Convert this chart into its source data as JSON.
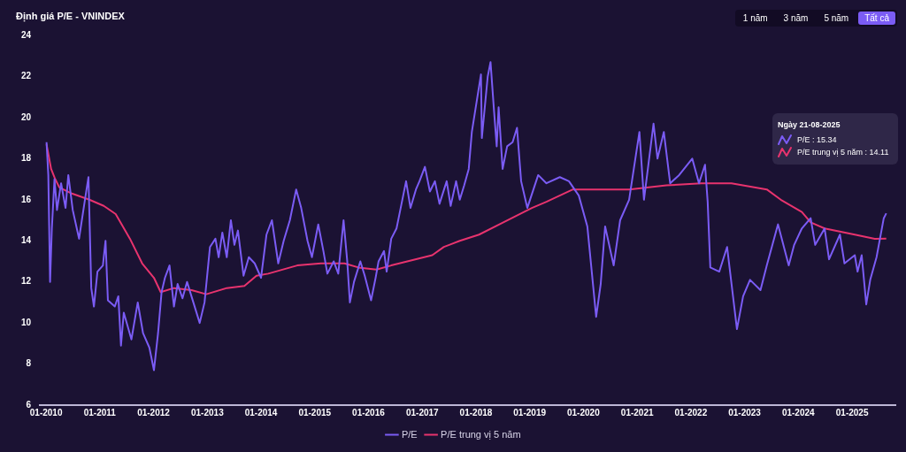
{
  "chart_data": {
    "type": "line",
    "title": "Định giá P/E - VNINDEX",
    "annotations": [
      "1 năm",
      "3 năm",
      "5 năm",
      "Tất cả",
      "Ngày 21-08-2025",
      "P/E : 15.34",
      "P/E trung vị 5 năm : 14.11"
    ],
    "xlim": [
      "2009-11-20",
      "2025-10-22"
    ],
    "xticks": [
      {
        "value": "2010-01",
        "label": "01-2010"
      },
      {
        "value": "2011-01",
        "label": "01-2011"
      },
      {
        "value": "2012-01",
        "label": "01-2012"
      },
      {
        "value": "2013-01",
        "label": "01-2013"
      },
      {
        "value": "2014-01",
        "label": "01-2014"
      },
      {
        "value": "2015-01",
        "label": "01-2015"
      },
      {
        "value": "2016-01",
        "label": "01-2016"
      },
      {
        "value": "2017-01",
        "label": "01-2017"
      },
      {
        "value": "2018-01",
        "label": "01-2018"
      },
      {
        "value": "2019-01",
        "label": "01-2019"
      },
      {
        "value": "2020-01",
        "label": "01-2020"
      },
      {
        "value": "2021-01",
        "label": "01-2021"
      },
      {
        "value": "2022-01",
        "label": "01-2022"
      },
      {
        "value": "2023-01",
        "label": "01-2023"
      },
      {
        "value": "2024-01",
        "label": "01-2024"
      },
      {
        "value": "2025-01",
        "label": "01-2025"
      }
    ],
    "ylim": [
      6,
      24
    ],
    "yticks": [
      6,
      8,
      10,
      12,
      14,
      16,
      18,
      20,
      22,
      24
    ],
    "grid": false,
    "legend": "bottom",
    "series": [
      {
        "name": "P/E",
        "color": "#7b5cf5",
        "x": [
          "2010-01-04",
          "2010-01-16",
          "2010-01-28",
          "2010-02-09",
          "2010-02-27",
          "2010-03-16",
          "2010-04-13",
          "2010-05-13",
          "2010-06-01",
          "2010-07-01",
          "2010-08-13",
          "2010-09-22",
          "2010-10-16",
          "2010-11-04",
          "2010-11-22",
          "2010-12-16",
          "2011-01-22",
          "2011-02-09",
          "2011-02-25",
          "2011-04-13",
          "2011-05-07",
          "2011-05-25",
          "2011-06-13",
          "2011-08-04",
          "2011-09-16",
          "2011-10-22",
          "2011-12-04",
          "2012-01-04",
          "2012-02-01",
          "2012-02-25",
          "2012-03-19",
          "2012-04-19",
          "2012-05-19",
          "2012-06-13",
          "2012-07-16",
          "2012-08-16",
          "2012-09-28",
          "2012-11-10",
          "2012-12-13",
          "2013-01-19",
          "2013-02-25",
          "2013-03-19",
          "2013-04-13",
          "2013-05-13",
          "2013-06-10",
          "2013-07-04",
          "2013-07-28",
          "2013-09-04",
          "2013-10-10",
          "2013-11-19",
          "2014-01-01",
          "2014-02-07",
          "2014-03-16",
          "2014-04-28",
          "2014-06-04",
          "2014-07-16",
          "2014-08-28",
          "2014-10-01",
          "2014-11-13",
          "2014-12-13",
          "2015-01-25",
          "2015-03-01",
          "2015-03-28",
          "2015-05-10",
          "2015-06-10",
          "2015-07-16",
          "2015-08-10",
          "2015-08-28",
          "2015-09-25",
          "2015-11-07",
          "2015-12-07",
          "2016-01-19",
          "2016-02-19",
          "2016-03-10",
          "2016-04-16",
          "2016-05-04",
          "2016-06-04",
          "2016-07-10",
          "2016-08-13",
          "2016-09-13",
          "2016-10-13",
          "2016-11-19",
          "2016-12-13",
          "2017-01-19",
          "2017-02-22",
          "2017-03-28",
          "2017-04-28",
          "2017-06-16",
          "2017-07-13",
          "2017-08-19",
          "2017-09-13",
          "2017-10-13",
          "2017-11-13",
          "2017-12-04",
          "2018-02-04",
          "2018-02-10",
          "2018-03-22",
          "2018-04-10",
          "2018-05-04",
          "2018-05-22",
          "2018-06-04",
          "2018-07-01",
          "2018-08-01",
          "2018-09-07",
          "2018-10-07",
          "2018-11-04",
          "2018-12-16",
          "2019-02-28",
          "2019-04-25",
          "2019-07-25",
          "2019-09-25",
          "2019-12-01",
          "2020-01-28",
          "2020-03-28",
          "2020-04-28",
          "2020-05-28",
          "2020-07-25",
          "2020-09-07",
          "2020-11-07",
          "2021-01-16",
          "2021-02-16",
          "2021-04-22",
          "2021-05-19",
          "2021-07-01",
          "2021-08-13",
          "2021-10-13",
          "2022-01-10",
          "2022-02-25",
          "2022-04-07",
          "2022-04-25",
          "2022-05-13",
          "2022-07-13",
          "2022-09-04",
          "2022-11-10",
          "2022-12-22",
          "2023-02-07",
          "2023-04-19",
          "2023-06-01",
          "2023-08-16",
          "2023-10-28",
          "2023-12-04",
          "2024-01-25",
          "2024-03-25",
          "2024-04-25",
          "2024-06-28",
          "2024-07-28",
          "2024-10-10",
          "2024-11-10",
          "2025-01-19",
          "2025-02-07",
          "2025-03-07",
          "2025-04-07",
          "2025-05-04",
          "2025-06-16",
          "2025-08-04",
          "2025-08-21"
        ],
        "values": [
          18.8,
          17.2,
          12.0,
          14.6,
          17.0,
          15.5,
          16.8,
          15.6,
          17.2,
          15.5,
          14.1,
          16.0,
          17.1,
          11.7,
          10.8,
          12.5,
          12.8,
          14.0,
          11.1,
          10.8,
          11.3,
          8.9,
          10.5,
          9.2,
          11.0,
          9.5,
          8.8,
          7.7,
          9.5,
          11.5,
          12.2,
          12.8,
          10.8,
          11.9,
          11.2,
          12.0,
          11.0,
          10.0,
          11.0,
          13.7,
          14.1,
          13.2,
          14.4,
          13.2,
          15.0,
          13.8,
          14.5,
          12.3,
          13.2,
          12.9,
          12.2,
          14.3,
          15.0,
          12.9,
          14.0,
          15.0,
          16.5,
          15.6,
          14.0,
          13.2,
          14.8,
          13.5,
          12.4,
          13.0,
          12.4,
          15.0,
          13.0,
          11.0,
          12.0,
          13.0,
          12.3,
          11.1,
          12.2,
          13.0,
          13.5,
          12.5,
          14.1,
          14.6,
          15.8,
          16.9,
          15.6,
          16.5,
          16.9,
          17.6,
          16.4,
          16.9,
          15.8,
          16.9,
          15.7,
          16.9,
          16.0,
          16.7,
          17.5,
          19.3,
          22.1,
          19.0,
          22.0,
          22.7,
          20.3,
          18.6,
          20.5,
          17.5,
          18.6,
          18.8,
          19.5,
          16.9,
          15.6,
          17.2,
          16.8,
          17.1,
          16.9,
          16.2,
          14.7,
          10.3,
          11.9,
          14.7,
          12.8,
          15.0,
          16.0,
          19.3,
          16.0,
          19.7,
          18.0,
          19.3,
          16.8,
          17.2,
          18.0,
          16.8,
          17.7,
          15.9,
          12.7,
          12.5,
          13.7,
          9.7,
          11.3,
          12.1,
          11.6,
          12.8,
          14.8,
          12.8,
          13.8,
          14.6,
          15.1,
          13.8,
          14.6,
          13.1,
          14.3,
          12.9,
          13.3,
          12.5,
          13.3,
          10.9,
          12.1,
          13.2,
          15.1,
          15.34
        ]
      },
      {
        "name": "P/E trung vị 5 năm",
        "color": "#e8336e",
        "x": [
          "2010-01-04",
          "2010-02-04",
          "2010-03-04",
          "2010-04-01",
          "2010-06-25",
          "2010-10-22",
          "2011-01-28",
          "2011-04-19",
          "2011-07-25",
          "2011-10-16",
          "2012-01-04",
          "2012-02-19",
          "2012-05-19",
          "2012-09-16",
          "2012-12-25",
          "2013-05-13",
          "2013-09-10",
          "2013-12-01",
          "2014-02-19",
          "2014-09-04",
          "2015-02-13",
          "2015-07-22",
          "2015-10-25",
          "2016-02-25",
          "2016-06-04",
          "2017-03-10",
          "2017-05-28",
          "2017-09-13",
          "2018-01-22",
          "2019-01-16",
          "2019-04-25",
          "2019-10-22",
          "2020-11-07",
          "2021-07-19",
          "2022-03-13",
          "2022-10-04",
          "2023-06-01",
          "2023-09-04",
          "2024-01-25",
          "2024-03-25",
          "2024-06-28",
          "2025-01-19",
          "2025-06-04",
          "2025-08-21"
        ],
        "values": [
          18.7,
          17.5,
          17.0,
          16.6,
          16.3,
          16.0,
          15.7,
          15.3,
          14.1,
          12.9,
          12.2,
          11.5,
          11.7,
          11.6,
          11.4,
          11.7,
          11.8,
          12.3,
          12.4,
          12.8,
          12.9,
          12.9,
          12.7,
          12.6,
          12.8,
          13.3,
          13.7,
          14.0,
          14.3,
          15.6,
          15.9,
          16.5,
          16.5,
          16.7,
          16.8,
          16.8,
          16.5,
          16.0,
          15.4,
          14.9,
          14.6,
          14.3,
          14.1,
          14.11
        ]
      }
    ]
  }
}
